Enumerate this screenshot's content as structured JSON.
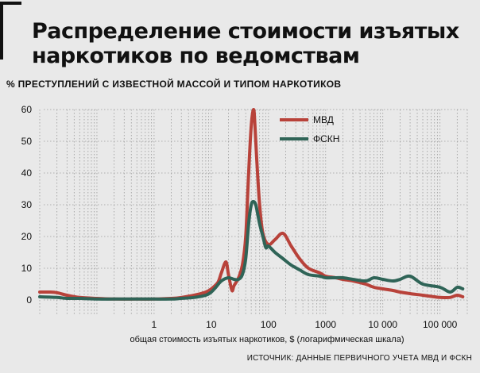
{
  "title": "Распределение стоимости изъятых\nнаркотиков по ведомствам",
  "subtitle": "% ПРЕСТУПЛЕНИЙ С ИЗВЕСТНОЙ МАССОЙ И ТИПОМ НАРКОТИКОВ",
  "source": "ИСТОЧНИК: ДАННЫЕ ПЕРВИЧНОГО УЧЕТА МВД И ФСКН",
  "colors": {
    "mvd": "#b8423a",
    "fskn": "#2f6457",
    "grid": "#9a9a9a",
    "background": "#e9e9e9"
  },
  "chart_data": {
    "type": "line",
    "xlabel": "общая стоимость изъятых наркотиков, $ (логарифмическая шкала)",
    "ylabel": "",
    "x_scale": "log",
    "xlim": [
      0.01,
      300000
    ],
    "ylim": [
      0,
      60
    ],
    "x_ticks": [
      1,
      10,
      100,
      1000,
      10000,
      100000
    ],
    "x_tick_labels": [
      "1",
      "10",
      "100",
      "1000",
      "10 000",
      "100 000"
    ],
    "y_ticks": [
      0,
      10,
      20,
      30,
      40,
      50,
      60
    ],
    "y_tick_labels": [
      "0",
      "10",
      "20",
      "30",
      "40",
      "50",
      "60"
    ],
    "grid": true,
    "legend_position": "top-right",
    "series": [
      {
        "name": "МВД",
        "color": "#b8423a",
        "x": [
          0.01,
          0.015,
          0.02,
          0.03,
          0.05,
          0.1,
          0.2,
          0.5,
          1,
          2,
          3,
          5,
          8,
          10,
          13,
          15,
          18,
          20,
          23,
          25,
          30,
          35,
          40,
          45,
          50,
          55,
          58,
          62,
          70,
          80,
          100,
          130,
          180,
          250,
          350,
          500,
          800,
          1000,
          1500,
          2000,
          3000,
          5000,
          7000,
          10000,
          15000,
          20000,
          30000,
          50000,
          80000,
          100000,
          150000,
          200000,
          250000
        ],
        "y": [
          2.5,
          2.5,
          2.3,
          1.5,
          0.8,
          0.5,
          0.3,
          0.3,
          0.3,
          0.5,
          0.8,
          1.5,
          2.5,
          3.5,
          5.5,
          8.5,
          12,
          8,
          3,
          4.5,
          7,
          11,
          20,
          40,
          55,
          60,
          55,
          45,
          30,
          21,
          17.5,
          19,
          21,
          17,
          13,
          10,
          8.5,
          7.5,
          7,
          6.5,
          6,
          5,
          4,
          3.5,
          3,
          2.5,
          2,
          1.5,
          1,
          0.8,
          0.8,
          1.5,
          1
        ]
      },
      {
        "name": "ФСКН",
        "color": "#2f6457",
        "x": [
          0.01,
          0.02,
          0.03,
          0.05,
          0.1,
          0.2,
          0.5,
          1,
          2,
          3,
          5,
          8,
          10,
          12,
          15,
          20,
          25,
          30,
          35,
          40,
          45,
          50,
          55,
          60,
          65,
          70,
          80,
          90,
          100,
          130,
          180,
          250,
          350,
          500,
          800,
          1000,
          1500,
          2000,
          3000,
          5000,
          7000,
          10000,
          15000,
          20000,
          30000,
          50000,
          100000,
          150000,
          200000,
          250000
        ],
        "y": [
          1,
          0.8,
          0.5,
          0.5,
          0.3,
          0.3,
          0.3,
          0.3,
          0.3,
          0.5,
          0.8,
          1.5,
          2.5,
          4,
          6,
          7,
          6.5,
          6.5,
          8,
          13,
          24,
          30,
          31,
          30,
          27,
          24,
          20,
          16.5,
          17,
          15,
          13,
          11,
          9.5,
          8,
          7.5,
          7,
          7,
          7,
          6.5,
          6,
          7,
          6.5,
          6,
          6.5,
          7.5,
          5,
          4,
          2.5,
          4,
          3.5
        ]
      }
    ]
  }
}
